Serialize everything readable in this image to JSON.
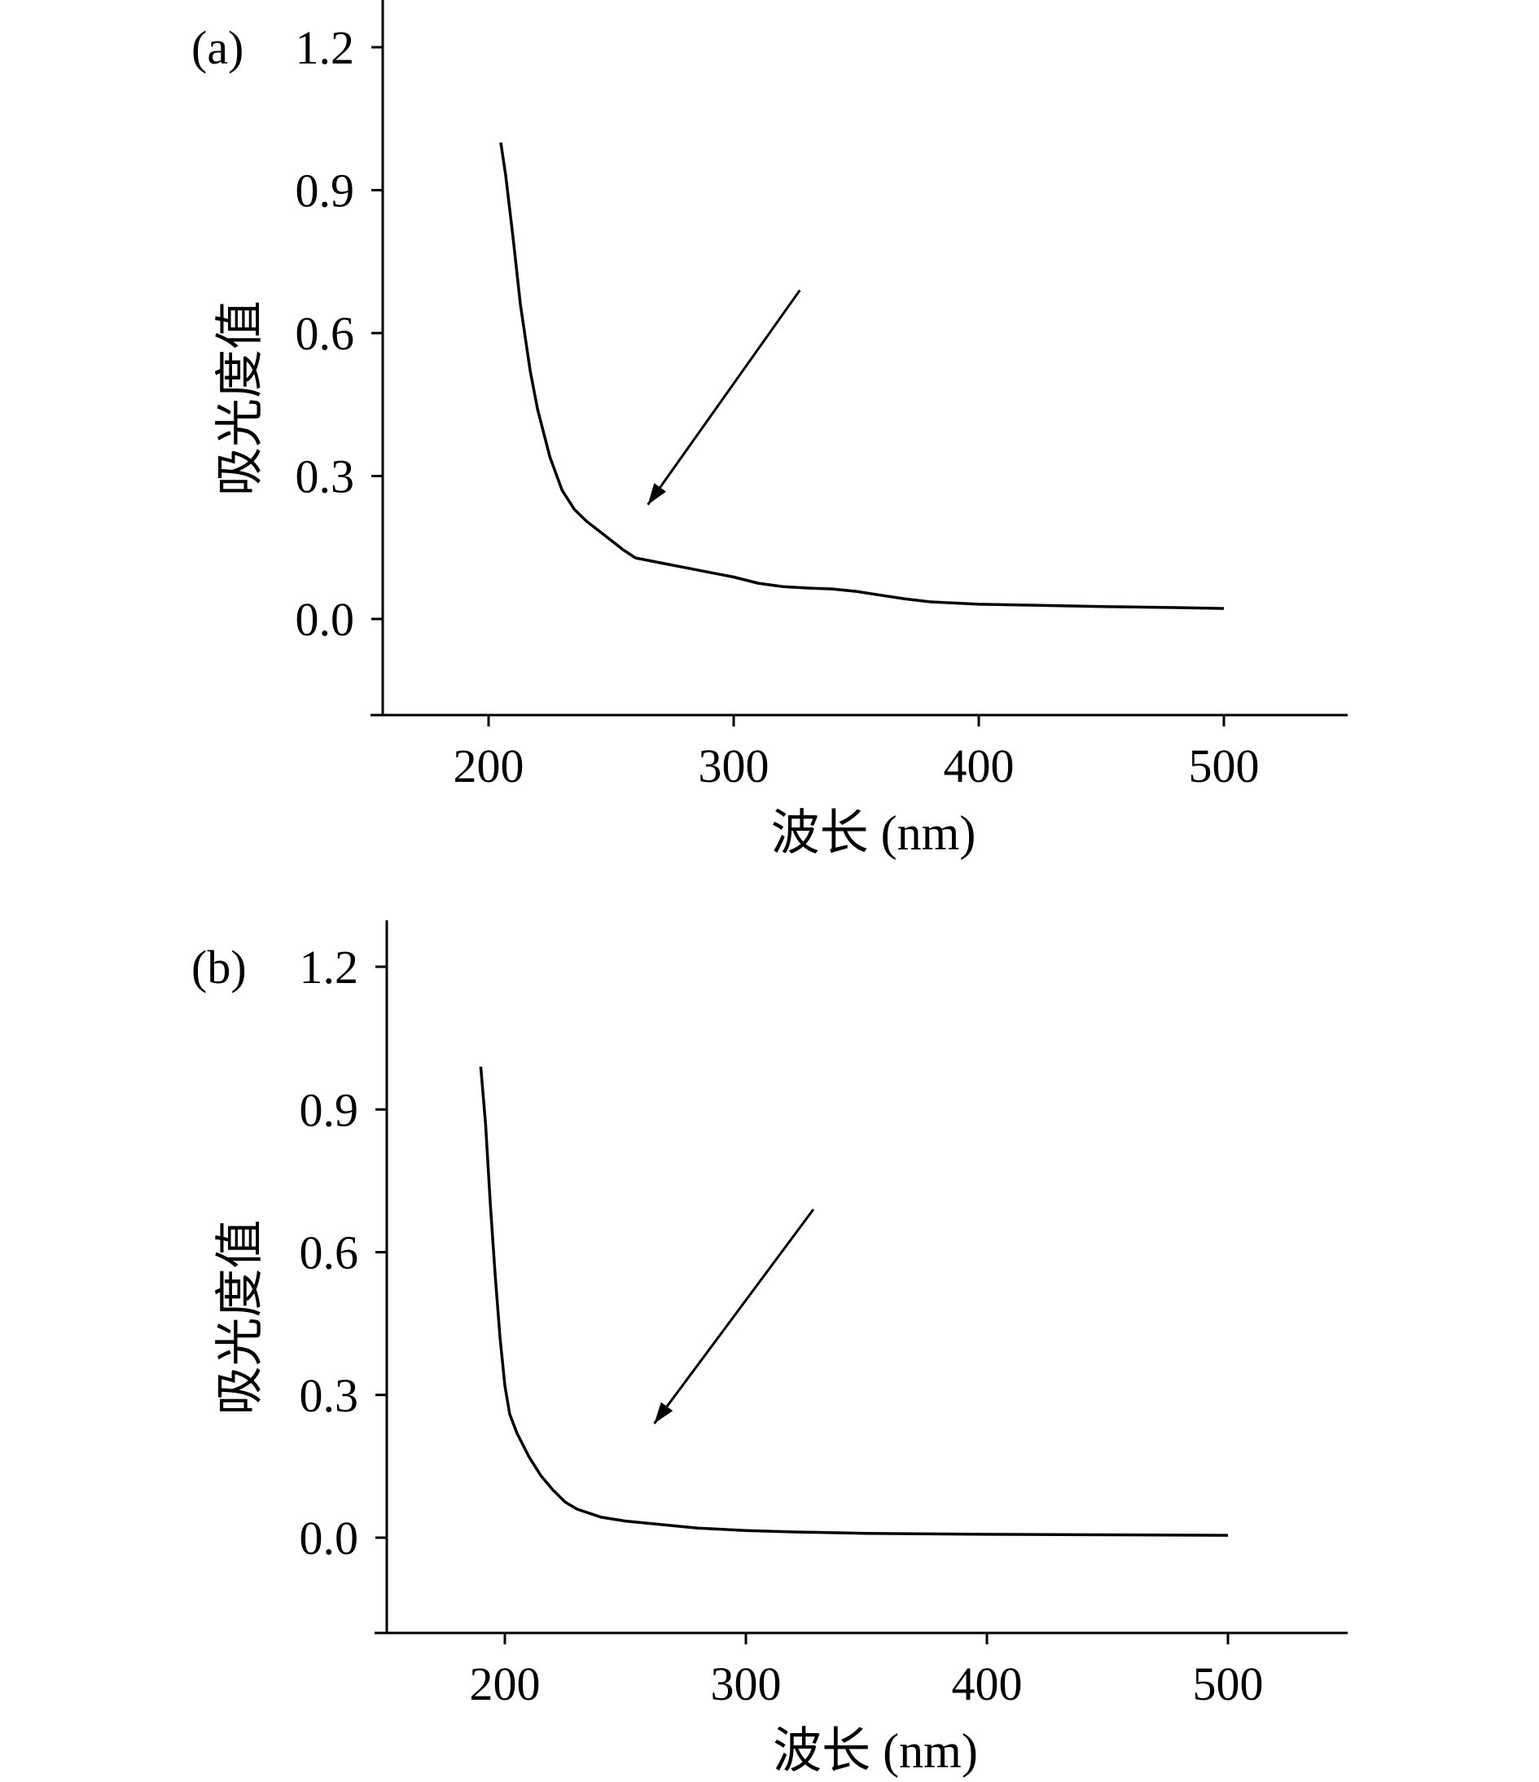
{
  "chart_data": [
    {
      "type": "line",
      "panel_label": "(a)",
      "xlabel": "波长 (nm)",
      "ylabel": "吸光度值",
      "xlim": [
        158,
        550
      ],
      "ylim": [
        -0.2,
        1.3
      ],
      "xticks": [
        200,
        300,
        400,
        500
      ],
      "yticks": [
        0.0,
        0.3,
        0.6,
        0.9,
        1.2
      ],
      "xtick_labels": [
        "200",
        "300",
        "400",
        "500"
      ],
      "ytick_labels": [
        "0.0",
        "0.3",
        "0.6",
        "0.9",
        "1.2"
      ],
      "grid": false,
      "series": [
        {
          "x": [
            205,
            207,
            210,
            213,
            217,
            220,
            225,
            230,
            235,
            240,
            245,
            250,
            255,
            260,
            265,
            270,
            280,
            290,
            300,
            310,
            320,
            330,
            340,
            350,
            360,
            370,
            380,
            400,
            420,
            450,
            480,
            500
          ],
          "y": [
            1.0,
            0.93,
            0.8,
            0.66,
            0.52,
            0.44,
            0.34,
            0.27,
            0.23,
            0.205,
            0.185,
            0.165,
            0.145,
            0.128,
            0.123,
            0.118,
            0.108,
            0.098,
            0.088,
            0.075,
            0.068,
            0.065,
            0.063,
            0.058,
            0.05,
            0.042,
            0.036,
            0.031,
            0.029,
            0.026,
            0.024,
            0.022
          ]
        }
      ],
      "annotations": [
        {
          "type": "arrow",
          "from": [
            327,
            0.69
          ],
          "to": [
            265,
            0.24
          ]
        }
      ]
    },
    {
      "type": "line",
      "panel_label": "(b)",
      "xlabel": "波长 (nm)",
      "ylabel": "吸光度值",
      "xlim": [
        150,
        550
      ],
      "ylim": [
        -0.2,
        1.3
      ],
      "xticks": [
        200,
        300,
        400,
        500
      ],
      "yticks": [
        0.0,
        0.3,
        0.6,
        0.9,
        1.2
      ],
      "xtick_labels": [
        "200",
        "300",
        "400",
        "500"
      ],
      "ytick_labels": [
        "0.0",
        "0.3",
        "0.6",
        "0.9",
        "1.2"
      ],
      "grid": false,
      "series": [
        {
          "x": [
            190,
            192,
            194,
            196,
            198,
            200,
            202,
            205,
            210,
            215,
            220,
            225,
            230,
            240,
            250,
            260,
            280,
            300,
            320,
            350,
            400,
            450,
            500
          ],
          "y": [
            0.99,
            0.87,
            0.7,
            0.55,
            0.42,
            0.32,
            0.26,
            0.22,
            0.17,
            0.13,
            0.1,
            0.075,
            0.06,
            0.043,
            0.035,
            0.03,
            0.02,
            0.015,
            0.012,
            0.009,
            0.007,
            0.006,
            0.005
          ]
        }
      ],
      "annotations": [
        {
          "type": "arrow",
          "from": [
            328,
            0.69
          ],
          "to": [
            262,
            0.24
          ]
        }
      ]
    }
  ]
}
